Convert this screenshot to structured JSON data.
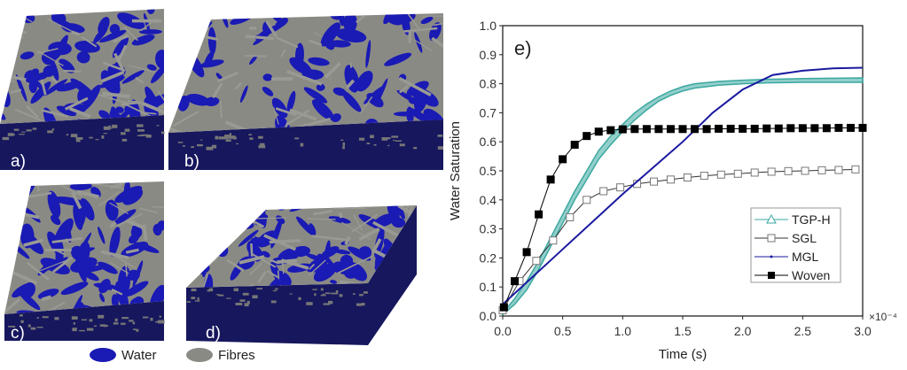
{
  "panels": {
    "a": {
      "label": "a)"
    },
    "b": {
      "label": "b)"
    },
    "c": {
      "label": "c)"
    },
    "d": {
      "label": "d)"
    }
  },
  "phase_legend": {
    "water": {
      "label": "Water",
      "color": "#1a1ab4"
    },
    "fibres": {
      "label": "Fibres",
      "color": "#8a8a85"
    }
  },
  "chart_data": {
    "type": "line",
    "panel_label": "e)",
    "xlabel": "Time (s)",
    "ylabel": "Water Saturation",
    "x_multiplier": "×10⁻⁴",
    "xlim": [
      0,
      3.0
    ],
    "ylim": [
      0,
      1.0
    ],
    "xticks": [
      "0.0",
      "0.5",
      "1.0",
      "1.5",
      "2.0",
      "2.5",
      "3.0"
    ],
    "yticks": [
      "0.0",
      "0.1",
      "0.2",
      "0.3",
      "0.4",
      "0.5",
      "0.6",
      "0.7",
      "0.8",
      "0.9",
      "1.0"
    ],
    "legend_position": "bottom-right",
    "series": [
      {
        "name": "TGP-H",
        "color": "#3aa8a0",
        "marker": "triangle-open",
        "band": true,
        "x": [
          0,
          0.1,
          0.2,
          0.3,
          0.4,
          0.5,
          0.6,
          0.7,
          0.8,
          0.9,
          1.0,
          1.1,
          1.2,
          1.3,
          1.4,
          1.5,
          1.6,
          1.8,
          2.0,
          2.2,
          2.5,
          3.0
        ],
        "upper": [
          0.01,
          0.06,
          0.12,
          0.19,
          0.27,
          0.35,
          0.43,
          0.5,
          0.57,
          0.62,
          0.66,
          0.7,
          0.73,
          0.755,
          0.775,
          0.79,
          0.8,
          0.808,
          0.812,
          0.815,
          0.818,
          0.82
        ],
        "lower": [
          0.005,
          0.04,
          0.09,
          0.16,
          0.24,
          0.32,
          0.4,
          0.47,
          0.54,
          0.59,
          0.635,
          0.675,
          0.71,
          0.74,
          0.76,
          0.775,
          0.785,
          0.795,
          0.8,
          0.803,
          0.805,
          0.805
        ]
      },
      {
        "name": "SGL",
        "color": "#333333",
        "marker": "square-open",
        "x": [
          0,
          0.14,
          0.28,
          0.42,
          0.56,
          0.7,
          0.84,
          0.98,
          1.12,
          1.26,
          1.4,
          1.54,
          1.68,
          1.82,
          1.96,
          2.1,
          2.24,
          2.38,
          2.52,
          2.66,
          2.8,
          2.94
        ],
        "y": [
          0.02,
          0.12,
          0.19,
          0.26,
          0.34,
          0.4,
          0.43,
          0.443,
          0.455,
          0.463,
          0.47,
          0.477,
          0.483,
          0.487,
          0.49,
          0.494,
          0.497,
          0.499,
          0.5,
          0.502,
          0.503,
          0.505
        ]
      },
      {
        "name": "MGL",
        "color": "#1a1aa0",
        "marker": "dot",
        "x": [
          0,
          0.5,
          1.0,
          1.5,
          1.75,
          2.0,
          2.25,
          2.5,
          2.75,
          3.0
        ],
        "y": [
          0.04,
          0.23,
          0.42,
          0.6,
          0.7,
          0.78,
          0.83,
          0.845,
          0.853,
          0.855
        ]
      },
      {
        "name": "Woven",
        "color": "#000000",
        "marker": "square-filled",
        "x": [
          0.01,
          0.1,
          0.2,
          0.3,
          0.4,
          0.5,
          0.6,
          0.7,
          0.8,
          0.9,
          1.0,
          1.1,
          1.2,
          1.3,
          1.4,
          1.5,
          1.6,
          1.7,
          1.8,
          1.9,
          2.0,
          2.1,
          2.2,
          2.3,
          2.4,
          2.5,
          2.6,
          2.7,
          2.8,
          2.9,
          3.0
        ],
        "y": [
          0.03,
          0.12,
          0.22,
          0.35,
          0.47,
          0.54,
          0.59,
          0.62,
          0.635,
          0.64,
          0.643,
          0.644,
          0.644,
          0.644,
          0.644,
          0.644,
          0.644,
          0.644,
          0.645,
          0.645,
          0.645,
          0.645,
          0.646,
          0.646,
          0.647,
          0.647,
          0.647,
          0.647,
          0.648,
          0.648,
          0.648
        ]
      }
    ]
  }
}
